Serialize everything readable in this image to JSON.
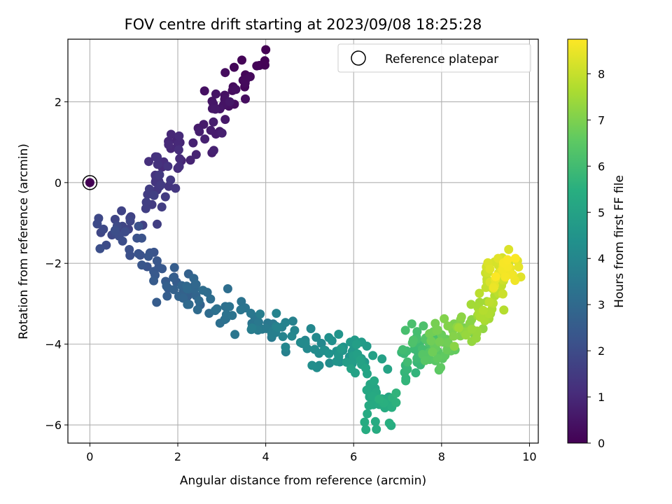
{
  "chart_data": {
    "type": "scatter",
    "title": "FOV centre drift starting at 2023/09/08 18:25:28",
    "xlabel": "Angular distance from reference (arcmin)",
    "ylabel": "Rotation from reference (arcmin)",
    "xlim": [
      -0.5,
      10.2
    ],
    "ylim": [
      -6.45,
      3.55
    ],
    "xticks": [
      0,
      2,
      4,
      6,
      8,
      10
    ],
    "yticks": [
      -6,
      -4,
      -2,
      0,
      2
    ],
    "grid": true,
    "legend": {
      "placement": "top-right",
      "entries": [
        "Reference platepar"
      ]
    },
    "reference_point": {
      "x": 0,
      "y": 0,
      "label": "Reference platepar"
    },
    "colorbar": {
      "label": "Hours from first FF file",
      "range": [
        0,
        8.75
      ],
      "ticks": [
        0,
        1,
        2,
        3,
        4,
        5,
        6,
        7,
        8
      ],
      "colormap": "viridis"
    },
    "anchors": [
      [
        0.0,
        3.8,
        3.15
      ],
      [
        0.25,
        3.4,
        2.3
      ],
      [
        0.5,
        2.9,
        1.9
      ],
      [
        0.75,
        2.6,
        1.1
      ],
      [
        1.0,
        2.0,
        0.8
      ],
      [
        1.25,
        1.6,
        0.3
      ],
      [
        1.5,
        1.5,
        -0.3
      ],
      [
        1.75,
        0.9,
        -0.9
      ],
      [
        2.0,
        0.4,
        -1.2
      ],
      [
        2.25,
        1.3,
        -1.8
      ],
      [
        2.5,
        1.7,
        -2.5
      ],
      [
        2.75,
        2.2,
        -2.6
      ],
      [
        3.0,
        2.6,
        -2.9
      ],
      [
        3.25,
        3.2,
        -3.3
      ],
      [
        3.5,
        3.8,
        -3.5
      ],
      [
        3.75,
        4.3,
        -3.7
      ],
      [
        4.0,
        4.8,
        -3.8
      ],
      [
        4.25,
        5.3,
        -4.3
      ],
      [
        4.5,
        5.8,
        -4.2
      ],
      [
        4.75,
        6.1,
        -4.1
      ],
      [
        5.0,
        6.3,
        -4.6
      ],
      [
        5.25,
        6.5,
        -5.4
      ],
      [
        5.4,
        6.5,
        -5.9
      ],
      [
        5.75,
        7.2,
        -4.6
      ],
      [
        6.0,
        7.4,
        -4.1
      ],
      [
        6.25,
        7.5,
        -3.8
      ],
      [
        6.5,
        7.9,
        -4.5
      ],
      [
        6.75,
        8.0,
        -4.0
      ],
      [
        7.0,
        8.3,
        -3.6
      ],
      [
        7.25,
        8.6,
        -3.7
      ],
      [
        7.5,
        8.9,
        -3.3
      ],
      [
        7.75,
        9.1,
        -2.9
      ],
      [
        8.0,
        9.2,
        -2.5
      ],
      [
        8.25,
        9.3,
        -2.0
      ],
      [
        8.5,
        9.4,
        -2.3
      ],
      [
        8.75,
        9.5,
        -2.1
      ]
    ]
  }
}
